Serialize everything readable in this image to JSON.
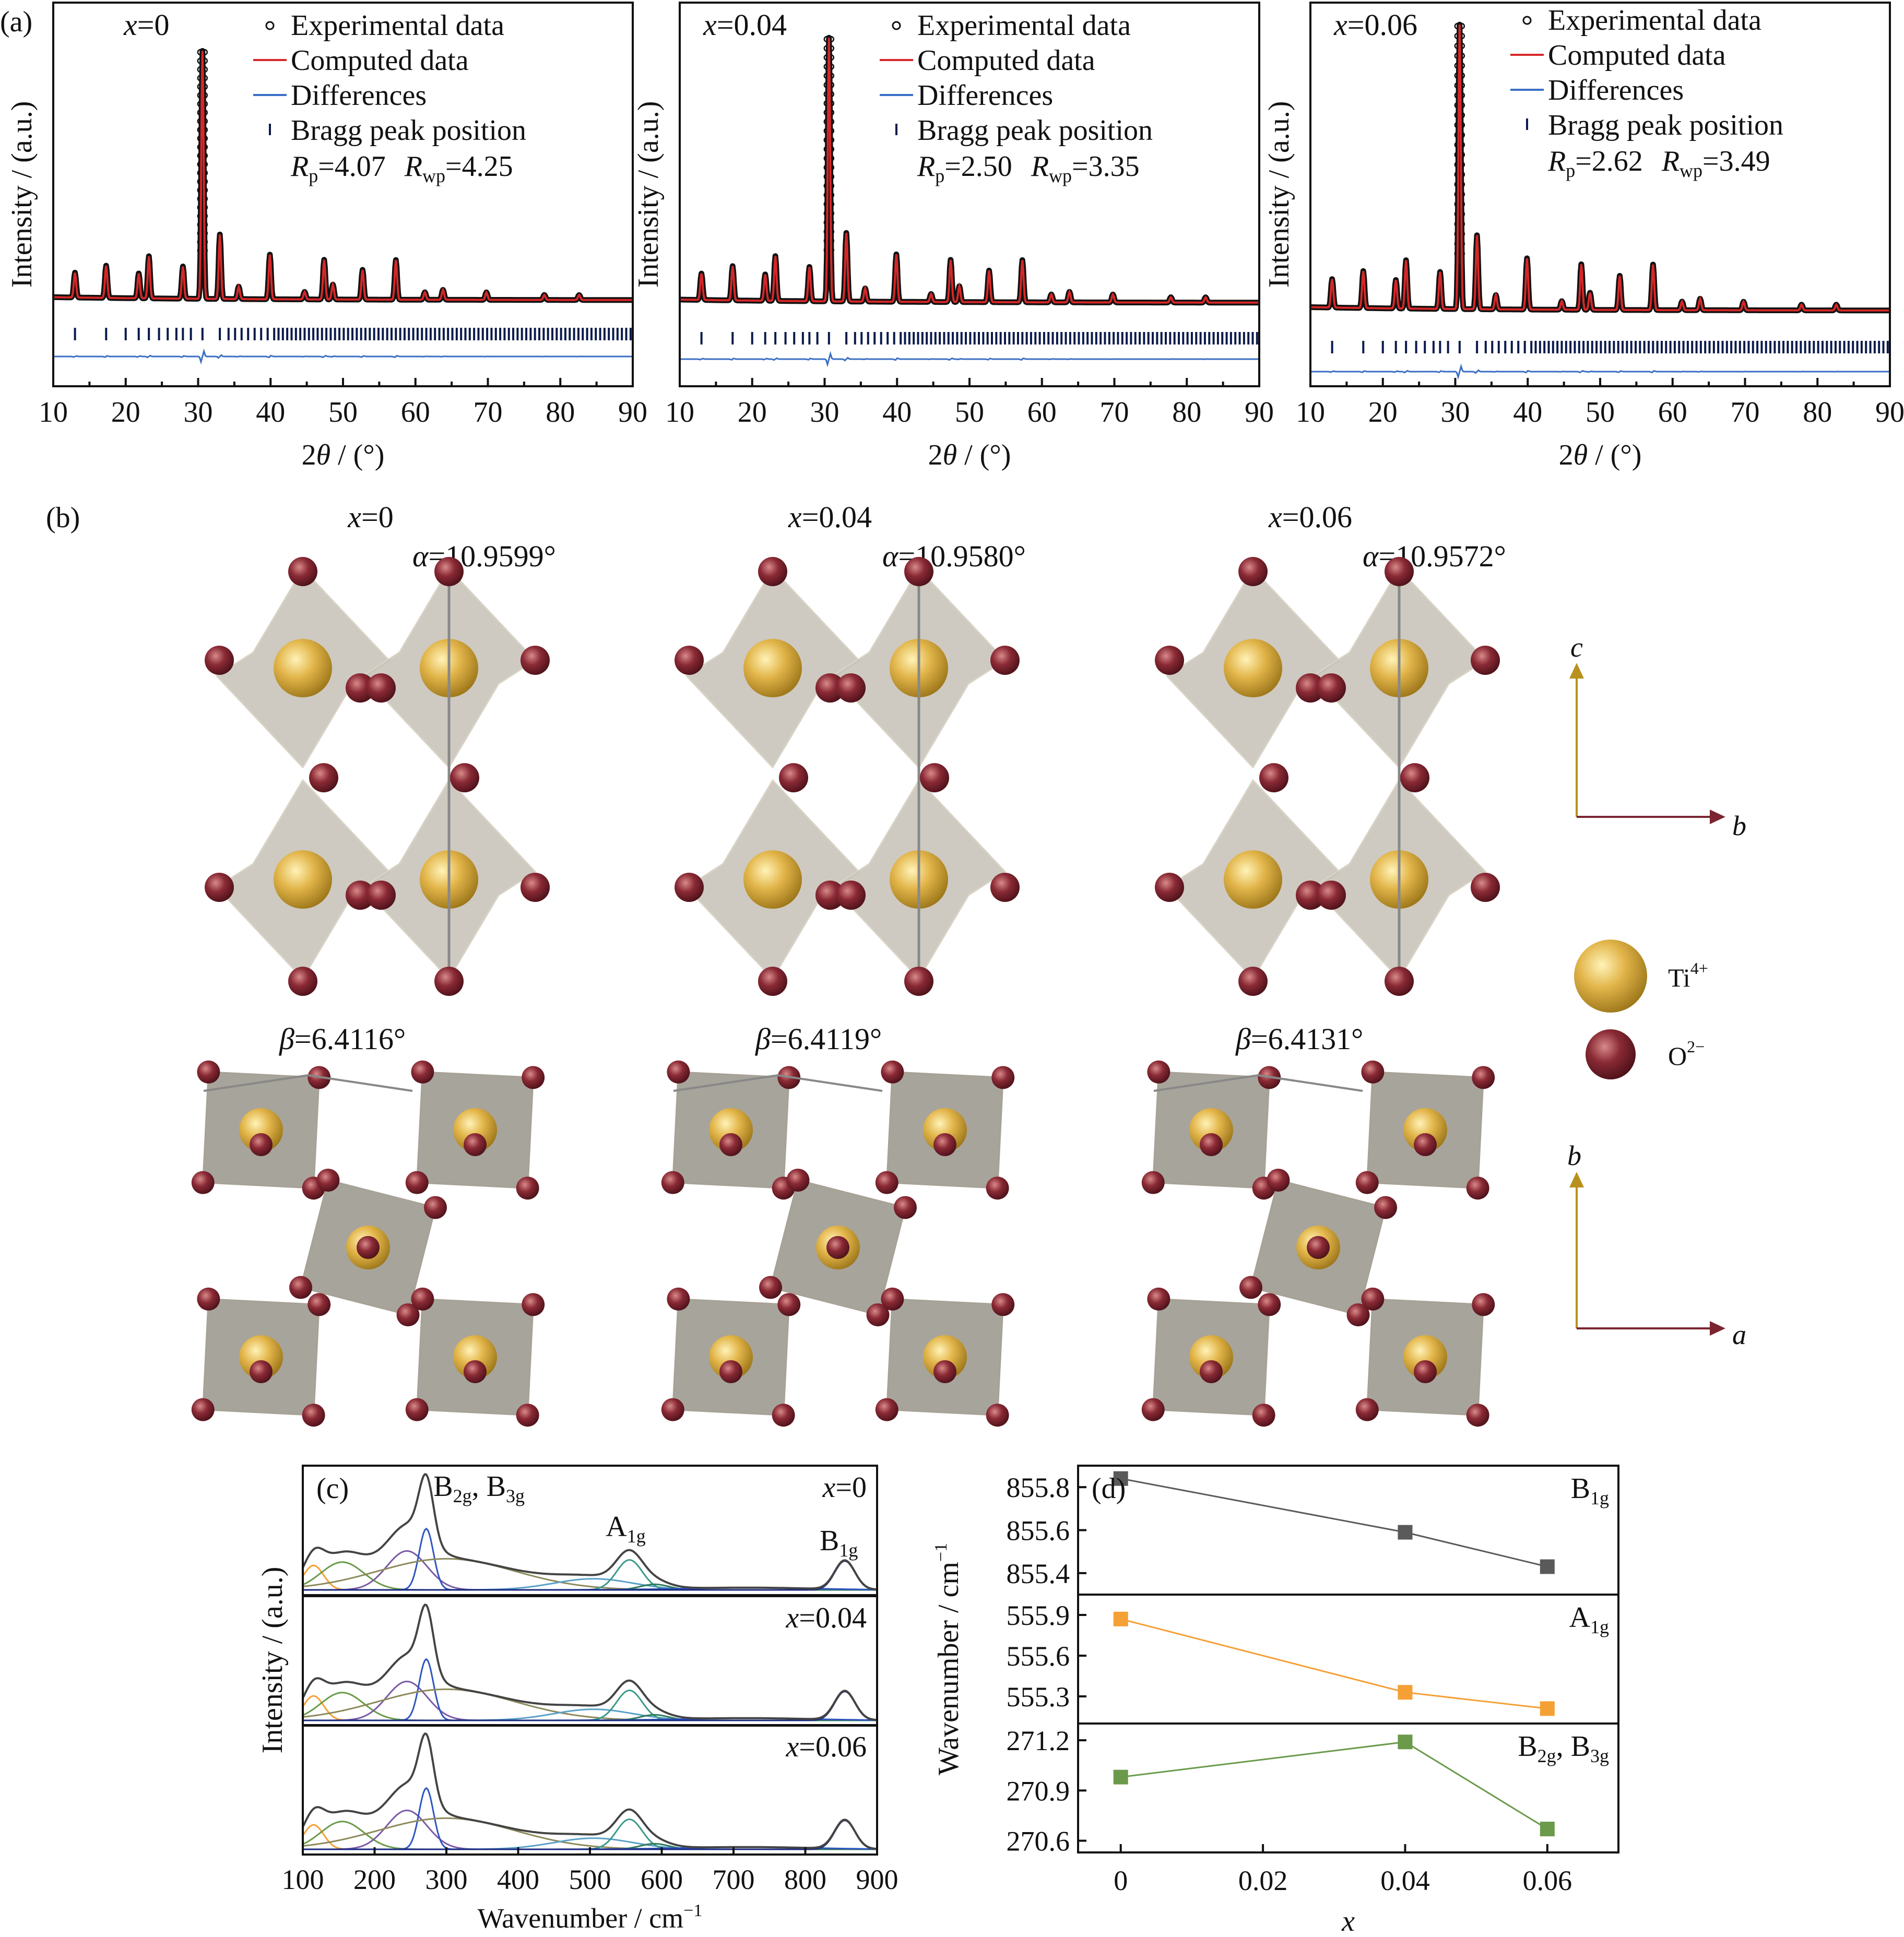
{
  "panels": {
    "a": {
      "label": "(a)",
      "ylabel": "Intensity / (a.u.)",
      "xlabel_pre": "2",
      "xlabel_var": "θ",
      "xlabel_post": " / (°)",
      "legend": {
        "experimental": "Experimental data",
        "computed": "Computed data",
        "differences": "Differences",
        "bragg": "Bragg peak position"
      },
      "r_labels": {
        "Rp": "R",
        "Rp_sub": "p",
        "Rwp": "R",
        "Rwp_sub": "wp"
      },
      "subplots": [
        {
          "x_var": "x",
          "x_val": "=0",
          "Rp": "=4.07",
          "Rwp": "=4.25"
        },
        {
          "x_var": "x",
          "x_val": "=0.04",
          "Rp": "=2.50",
          "Rwp": "=3.35"
        },
        {
          "x_var": "x",
          "x_val": "=0.06",
          "Rp": "=2.62",
          "Rwp": "=3.49"
        }
      ]
    },
    "b": {
      "label": "(b)",
      "columns": [
        {
          "x_var": "x",
          "x_val": "=0",
          "alpha_var": "α",
          "alpha_val": "=10.9599°",
          "beta_var": "β",
          "beta_val": "=6.4116°"
        },
        {
          "x_var": "x",
          "x_val": "=0.04",
          "alpha_var": "α",
          "alpha_val": "=10.9580°",
          "beta_var": "β",
          "beta_val": "=6.4119°"
        },
        {
          "x_var": "x",
          "x_val": "=0.06",
          "alpha_var": "α",
          "alpha_val": "=10.9572°",
          "beta_var": "β",
          "beta_val": "=6.4131°"
        }
      ],
      "axes_top": {
        "up": "c",
        "right": "b"
      },
      "axes_bottom": {
        "up": "b",
        "right": "a"
      },
      "legend": {
        "ti": "Ti",
        "ti_sup": "4+",
        "o": "O",
        "o_sup": "2−"
      },
      "colors": {
        "ti": "#d4a437",
        "o": "#7a2530",
        "octahedron": "#b9b4a6",
        "axis_up": "#b8901e",
        "axis_right": "#7a2530"
      }
    },
    "c": {
      "label": "(c)",
      "ylabel": "Intensity / (a.u.)",
      "xlabel": "Wavenumber / cm",
      "xlabel_sup": "−1",
      "modes": {
        "b2g_b3g": "B",
        "b2g_sub": "2g",
        "sep": ", B",
        "b3g_sub": "3g",
        "a1g": "A",
        "a1g_sub": "1g",
        "b1g": "B",
        "b1g_sub": "1g"
      },
      "subplots": [
        {
          "x_var": "x",
          "x_val": "=0"
        },
        {
          "x_var": "x",
          "x_val": "=0.04"
        },
        {
          "x_var": "x",
          "x_val": "=0.06"
        }
      ]
    },
    "d": {
      "label": "(d)",
      "ylabel": "Wavenumber / cm",
      "ylabel_sup": "−1",
      "xlabel": "x",
      "mode_labels": [
        {
          "main": "B",
          "sub": "1g",
          "tail": ""
        },
        {
          "main": "A",
          "sub": "1g",
          "tail": ""
        },
        {
          "main": "B",
          "sub": "2g",
          "tail": ", B",
          "sub2": "3g"
        }
      ]
    }
  },
  "chart_data": [
    {
      "type": "line",
      "panel": "a",
      "xlim": [
        10,
        90
      ],
      "xticks": [
        10,
        20,
        30,
        40,
        50,
        60,
        70,
        80,
        90
      ],
      "peaks_2theta": [
        13.0,
        17.3,
        21.8,
        23.2,
        27.9,
        30.6,
        33.0,
        35.6,
        39.9,
        44.7,
        47.4,
        48.6,
        52.7,
        57.3,
        61.3,
        63.8,
        69.8,
        77.8,
        82.6
      ],
      "peaks_relative_intensity": [
        0.1,
        0.13,
        0.1,
        0.17,
        0.13,
        1.0,
        0.26,
        0.05,
        0.18,
        0.03,
        0.16,
        0.06,
        0.12,
        0.16,
        0.03,
        0.04,
        0.03,
        0.02,
        0.02
      ],
      "series": [
        {
          "name": "Experimental data",
          "style": "circles",
          "color": "#111111"
        },
        {
          "name": "Computed data",
          "style": "line",
          "color": "#d62728"
        },
        {
          "name": "Differences",
          "style": "line",
          "color": "#3a6fc4"
        },
        {
          "name": "Bragg peak position",
          "style": "ticks",
          "color": "#0a1a4a"
        }
      ]
    },
    {
      "type": "line",
      "panel": "c",
      "xlim": [
        100,
        900
      ],
      "xticks": [
        100,
        200,
        300,
        400,
        500,
        600,
        700,
        800,
        900
      ],
      "bands_cm-1": [
        115,
        150,
        245,
        270,
        300,
        500,
        555,
        590,
        720,
        855
      ],
      "band_relative_intensity": [
        0.22,
        0.25,
        0.35,
        0.55,
        0.28,
        0.1,
        0.27,
        0.05,
        0.02,
        0.26
      ],
      "sum_peak_relative_intensity": {
        "118": 0.35,
        "160": 0.27,
        "272": 1.0,
        "555": 0.3,
        "855": 0.26
      }
    },
    {
      "type": "line",
      "panel": "d",
      "x": [
        0,
        0.04,
        0.06
      ],
      "xticks": [
        0,
        0.02,
        0.04,
        0.06
      ],
      "xtick_labels": [
        "0",
        "0.02",
        "0.04",
        "0.06"
      ],
      "xlim": [
        -0.006,
        0.07
      ],
      "series": [
        {
          "values": [
            855.84,
            855.59,
            855.43
          ],
          "ylim": [
            855.3,
            855.9
          ],
          "yticks": [
            855.4,
            855.6,
            855.8
          ],
          "ytick_labels": [
            "855.4",
            "855.6",
            "855.8"
          ],
          "color": "#5a5a5a"
        },
        {
          "values": [
            555.87,
            555.33,
            555.21
          ],
          "ylim": [
            555.1,
            556.05
          ],
          "yticks": [
            555.3,
            555.6,
            555.9
          ],
          "ytick_labels": [
            "555.3",
            "555.6",
            "555.9"
          ],
          "color": "#f5a035"
        },
        {
          "values": [
            270.98,
            271.19,
            270.67
          ],
          "ylim": [
            270.53,
            271.3
          ],
          "yticks": [
            270.6,
            270.9,
            271.2
          ],
          "ytick_labels": [
            "270.6",
            "270.9",
            "271.2"
          ],
          "color": "#6a9a4a"
        }
      ]
    }
  ]
}
